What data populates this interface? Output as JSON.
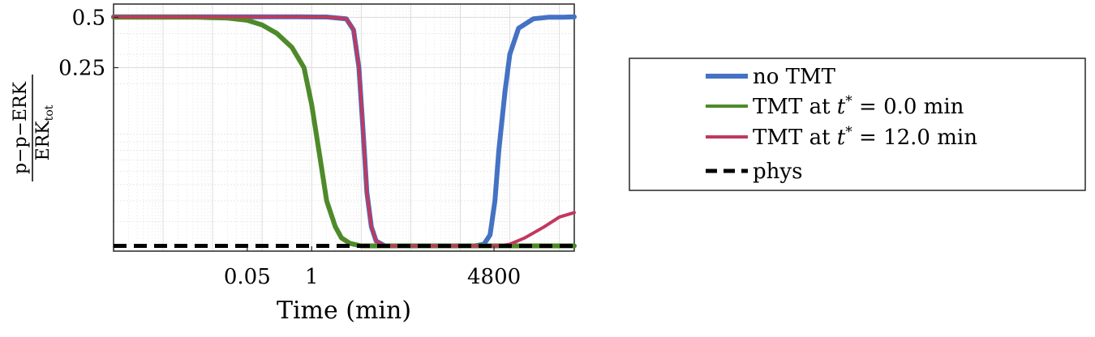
{
  "chart_data": {
    "type": "line",
    "xlabel": "Time (min)",
    "ylabel": {
      "numerator": "p−p−ERK",
      "denominator": "ERK",
      "denominator_sub": "tot"
    },
    "x_scale": "log",
    "xlim": [
      0.0001,
      200000
    ],
    "ylim": [
      0.02,
      0.6
    ],
    "y_scale": "log",
    "grid": true,
    "x_ticks": [
      0.05,
      1,
      4800
    ],
    "x_tick_labels": [
      "0.05",
      "1",
      "4800"
    ],
    "y_ticks": [
      0.25,
      0.5
    ],
    "y_tick_labels": [
      "0.25",
      "0.5"
    ],
    "legend_position": "outside-right",
    "legend": [
      {
        "key": "no_tmt",
        "label": "no TMT",
        "color": "#4472C4"
      },
      {
        "key": "tmt_0",
        "label_prefix": "TMT at ",
        "label_var": "t",
        "label_sup": "*",
        "label_suffix": " = 0.0 min",
        "color": "#4E8A2A"
      },
      {
        "key": "tmt_12",
        "label_prefix": "TMT at ",
        "label_var": "t",
        "label_sup": "*",
        "label_suffix": " = 12.0 min",
        "color": "#C0395E"
      },
      {
        "key": "phys",
        "label": "phys",
        "color": "#000000",
        "dashed": true
      }
    ],
    "series": [
      {
        "name": "no TMT",
        "color": "#4472C4",
        "width": 6,
        "x": [
          0.0001,
          0.5,
          2,
          5,
          7,
          9,
          11,
          13,
          16,
          20,
          30,
          60,
          200,
          1000,
          2000,
          3000,
          4000,
          5000,
          6000,
          8000,
          10000,
          15000,
          30000,
          60000,
          120000,
          200000
        ],
        "y": [
          0.503,
          0.503,
          0.502,
          0.49,
          0.42,
          0.25,
          0.1,
          0.045,
          0.028,
          0.023,
          0.0215,
          0.0215,
          0.0215,
          0.0215,
          0.0215,
          0.022,
          0.025,
          0.04,
          0.08,
          0.18,
          0.3,
          0.43,
          0.49,
          0.5,
          0.5,
          0.503
        ]
      },
      {
        "name": "TMT at t* = 0.0 min",
        "color": "#4E8A2A",
        "width": 6,
        "x": [
          0.0001,
          0.005,
          0.02,
          0.05,
          0.1,
          0.2,
          0.4,
          0.7,
          1,
          1.5,
          2,
          3,
          4,
          6,
          10,
          20,
          60,
          500,
          3000,
          10000,
          50000,
          200000
        ],
        "y": [
          0.5,
          0.5,
          0.495,
          0.48,
          0.45,
          0.4,
          0.33,
          0.25,
          0.15,
          0.07,
          0.04,
          0.028,
          0.024,
          0.0222,
          0.0215,
          0.0215,
          0.0215,
          0.0215,
          0.0215,
          0.0215,
          0.0215,
          0.0215
        ]
      },
      {
        "name": "TMT at t* = 12.0 min",
        "color": "#C0395E",
        "width": 4,
        "x": [
          0.0001,
          0.5,
          2,
          5,
          7,
          9,
          11,
          13,
          16,
          20,
          30,
          60,
          200,
          1000,
          2000,
          3000,
          4000,
          6000,
          10000,
          20000,
          50000,
          100000,
          200000
        ],
        "y": [
          0.503,
          0.503,
          0.502,
          0.49,
          0.42,
          0.25,
          0.1,
          0.045,
          0.028,
          0.023,
          0.0215,
          0.0215,
          0.0215,
          0.0215,
          0.0215,
          0.0215,
          0.0215,
          0.0215,
          0.022,
          0.024,
          0.028,
          0.032,
          0.034
        ]
      },
      {
        "name": "phys",
        "color": "#000000",
        "width": 5,
        "dashed": true,
        "x": [
          0.0001,
          200000
        ],
        "y": [
          0.0215,
          0.0215
        ]
      }
    ]
  }
}
